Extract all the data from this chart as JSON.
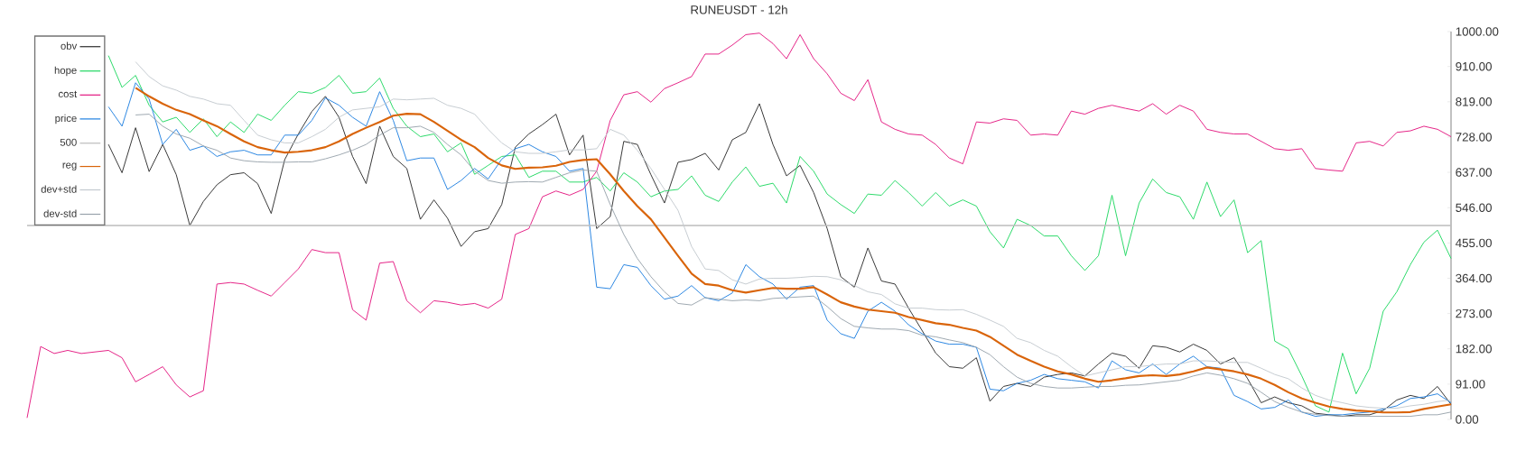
{
  "chart_data": {
    "type": "line",
    "title": "RUNEUSDT - 12h",
    "categories": [
      null,
      null,
      null,
      null,
      null,
      null,
      null,
      null,
      null,
      null,
      null,
      null,
      null,
      null,
      null,
      null,
      null,
      null,
      null,
      null,
      null,
      null,
      null,
      null,
      null,
      null,
      null,
      null,
      null,
      null,
      null,
      null,
      null,
      null,
      null,
      null,
      null,
      null,
      null,
      null,
      null,
      null,
      null,
      null,
      null,
      null,
      null,
      null,
      null,
      null,
      null,
      null,
      null,
      null,
      null,
      null,
      null,
      null,
      null,
      null,
      null,
      null,
      null,
      null,
      null,
      null,
      null,
      null,
      null,
      null,
      null,
      null,
      null,
      null,
      null,
      null,
      null,
      null,
      null,
      null,
      null,
      null,
      null,
      null,
      null,
      null,
      null,
      null,
      null,
      null,
      null,
      null,
      null,
      null,
      null,
      null,
      null,
      null,
      null,
      null,
      null,
      null,
      null,
      null,
      null,
      null
    ],
    "ylim": [
      0,
      1000
    ],
    "yticks": [
      {
        "value": 0,
        "label": "0.00"
      },
      {
        "value": 91,
        "label": "91.00"
      },
      {
        "value": 182,
        "label": "182.00"
      },
      {
        "value": 273,
        "label": "273.00"
      },
      {
        "value": 364,
        "label": "364.00"
      },
      {
        "value": 455,
        "label": "455.00"
      },
      {
        "value": 546,
        "label": "546.00"
      },
      {
        "value": 637,
        "label": "637.00"
      },
      {
        "value": 728,
        "label": "728.00"
      },
      {
        "value": 819,
        "label": "819.00"
      },
      {
        "value": 910,
        "label": "910.00"
      },
      {
        "value": 1000,
        "label": "1000.00"
      }
    ],
    "legend": "top left",
    "series": [
      {
        "name": "obv",
        "color": "#2b2b2b",
        "values": [
          null,
          null,
          null,
          null,
          null,
          null,
          709,
          636,
          752,
          639,
          709,
          631,
          500,
          562,
          605,
          631,
          636,
          608,
          531,
          670,
          736,
          794,
          833,
          779,
          678,
          608,
          756,
          678,
          647,
          516,
          566,
          519,
          446,
          484,
          492,
          554,
          702,
          736,
          760,
          787,
          682,
          733,
          492,
          523,
          717,
          709,
          631,
          558,
          663,
          670,
          686,
          643,
          721,
          740,
          814,
          709,
          628,
          655,
          585,
          492,
          368,
          341,
          442,
          357,
          349,
          287,
          229,
          171,
          136,
          132,
          159,
          47,
          85,
          93,
          85,
          109,
          116,
          120,
          112,
          143,
          171,
          163,
          132,
          190,
          186,
          174,
          194,
          178,
          143,
          159,
          105,
          43,
          58,
          43,
          35,
          16,
          12,
          8,
          12,
          12,
          23,
          50,
          62,
          54,
          85,
          39
        ]
      },
      {
        "name": "hope",
        "color": "#1ed760",
        "values": [
          null,
          null,
          null,
          null,
          null,
          null,
          938,
          856,
          887,
          810,
          767,
          779,
          740,
          775,
          729,
          767,
          740,
          787,
          771,
          810,
          845,
          841,
          856,
          887,
          841,
          845,
          880,
          802,
          756,
          729,
          736,
          690,
          713,
          632,
          655,
          678,
          682,
          624,
          640,
          640,
          612,
          612,
          624,
          589,
          636,
          612,
          574,
          589,
          593,
          628,
          578,
          562,
          612,
          651,
          601,
          609,
          558,
          678,
          640,
          581,
          554,
          531,
          581,
          578,
          616,
          585,
          550,
          585,
          550,
          566,
          550,
          484,
          442,
          516,
          500,
          473,
          473,
          422,
          384,
          422,
          578,
          422,
          558,
          620,
          585,
          574,
          516,
          612,
          523,
          566,
          430,
          461,
          202,
          182,
          112,
          35,
          19,
          171,
          66,
          132,
          279,
          329,
          399,
          457,
          488,
          415
        ]
      },
      {
        "name": "cost",
        "color": "#e3167f",
        "values": [
          4,
          188,
          170,
          178,
          170,
          174,
          178,
          159,
          97,
          116,
          136,
          89,
          58,
          74,
          349,
          353,
          349,
          333,
          318,
          353,
          388,
          438,
          430,
          430,
          283,
          256,
          403,
          407,
          306,
          275,
          306,
          302,
          295,
          299,
          287,
          310,
          477,
          492,
          574,
          589,
          578,
          593,
          640,
          771,
          837,
          845,
          818,
          853,
          868,
          884,
          942,
          942,
          965,
          992,
          996,
          969,
          930,
          992,
          930,
          891,
          841,
          822,
          876,
          767,
          748,
          736,
          733,
          709,
          674,
          659,
          767,
          764,
          775,
          771,
          733,
          736,
          733,
          795,
          787,
          802,
          810,
          802,
          795,
          814,
          787,
          810,
          795,
          748,
          740,
          736,
          736,
          717,
          698,
          694,
          698,
          647,
          643,
          640,
          713,
          717,
          705,
          740,
          744,
          756,
          748,
          729
        ]
      },
      {
        "name": "price",
        "color": "#1e7fe0",
        "values": [
          null,
          null,
          null,
          null,
          null,
          null,
          806,
          756,
          868,
          826,
          709,
          748,
          694,
          705,
          678,
          690,
          694,
          682,
          682,
          733,
          733,
          771,
          829,
          810,
          779,
          756,
          845,
          771,
          667,
          674,
          674,
          593,
          616,
          647,
          620,
          671,
          698,
          709,
          690,
          678,
          640,
          647,
          341,
          337,
          399,
          392,
          345,
          310,
          318,
          345,
          314,
          306,
          326,
          399,
          368,
          349,
          310,
          341,
          345,
          256,
          221,
          209,
          279,
          302,
          279,
          244,
          221,
          202,
          194,
          194,
          186,
          78,
          74,
          93,
          101,
          116,
          105,
          101,
          97,
          81,
          151,
          128,
          120,
          143,
          116,
          143,
          163,
          136,
          132,
          62,
          46,
          27,
          31,
          50,
          19,
          8,
          12,
          12,
          16,
          19,
          27,
          35,
          54,
          58,
          66,
          43
        ]
      },
      {
        "name": "500",
        "color": "#bdbdbd",
        "values": [
          500,
          500,
          500,
          500,
          500,
          500,
          500,
          500,
          500,
          500,
          500,
          500,
          500,
          500,
          500,
          500,
          500,
          500,
          500,
          500,
          500,
          500,
          500,
          500,
          500,
          500,
          500,
          500,
          500,
          500,
          500,
          500,
          500,
          500,
          500,
          500,
          500,
          500,
          500,
          500,
          500,
          500,
          500,
          500,
          500,
          500,
          500,
          500,
          500,
          500,
          500,
          500,
          500,
          500,
          500,
          500,
          500,
          500,
          500,
          500,
          500,
          500,
          500,
          500,
          500,
          500,
          500,
          500,
          500,
          500,
          500,
          500,
          500,
          500,
          500,
          500,
          500,
          500,
          500,
          500,
          500,
          500,
          500,
          500,
          500,
          500,
          500,
          500,
          500,
          500,
          500,
          500,
          500,
          500,
          500,
          500,
          500,
          500,
          500,
          500,
          500,
          500,
          500,
          500,
          500,
          500
        ]
      },
      {
        "name": "reg",
        "color": "#d9640a",
        "values": [
          null,
          null,
          null,
          null,
          null,
          null,
          null,
          null,
          855,
          833,
          814,
          798,
          787,
          771,
          756,
          736,
          717,
          702,
          694,
          688,
          690,
          694,
          702,
          717,
          736,
          752,
          767,
          783,
          788,
          787,
          767,
          744,
          721,
          702,
          674,
          655,
          646,
          649,
          650,
          654,
          664,
          669,
          671,
          632,
          589,
          550,
          516,
          469,
          422,
          376,
          349,
          345,
          333,
          327,
          333,
          339,
          337,
          337,
          341,
          322,
          302,
          291,
          283,
          279,
          275,
          264,
          256,
          248,
          244,
          236,
          229,
          213,
          190,
          167,
          151,
          136,
          124,
          116,
          105,
          97,
          101,
          106,
          112,
          114,
          112,
          116,
          124,
          134,
          129,
          124,
          116,
          105,
          89,
          70,
          54,
          43,
          33,
          27,
          23,
          21,
          18,
          18,
          19,
          27,
          33,
          39
        ]
      },
      {
        "name": "dev+std",
        "color": "#c3c9cf",
        "values": [
          null,
          null,
          null,
          null,
          null,
          null,
          null,
          null,
          922,
          884,
          860,
          849,
          833,
          826,
          814,
          810,
          771,
          733,
          721,
          713,
          713,
          729,
          748,
          779,
          798,
          802,
          806,
          826,
          824,
          826,
          828,
          810,
          802,
          787,
          748,
          713,
          690,
          686,
          686,
          690,
          695,
          695,
          698,
          748,
          733,
          694,
          647,
          593,
          539,
          446,
          388,
          384,
          360,
          349,
          362,
          364,
          364,
          366,
          369,
          368,
          360,
          345,
          329,
          322,
          298,
          287,
          287,
          283,
          282,
          283,
          271,
          256,
          240,
          209,
          198,
          178,
          163,
          136,
          112,
          120,
          128,
          136,
          136,
          140,
          143,
          143,
          151,
          151,
          149,
          147,
          147,
          132,
          116,
          105,
          81,
          62,
          50,
          43,
          35,
          31,
          29,
          29,
          35,
          39,
          46,
          50
        ]
      },
      {
        "name": "dev-std",
        "color": "#98a2ab",
        "values": [
          null,
          null,
          null,
          null,
          null,
          null,
          null,
          null,
          785,
          787,
          756,
          736,
          725,
          705,
          694,
          674,
          667,
          664,
          663,
          663,
          664,
          664,
          672,
          682,
          694,
          709,
          733,
          752,
          752,
          756,
          740,
          709,
          682,
          640,
          616,
          609,
          612,
          613,
          612,
          624,
          636,
          643,
          640,
          554,
          477,
          415,
          368,
          329,
          299,
          295,
          314,
          310,
          306,
          308,
          306,
          312,
          314,
          316,
          318,
          291,
          260,
          240,
          236,
          233,
          233,
          229,
          217,
          213,
          205,
          198,
          186,
          167,
          136,
          109,
          93,
          85,
          81,
          81,
          83,
          85,
          85,
          88,
          89,
          93,
          97,
          101,
          112,
          120,
          114,
          105,
          93,
          70,
          46,
          31,
          19,
          13,
          10,
          8,
          8,
          8,
          8,
          8,
          8,
          12,
          12,
          19
        ]
      }
    ]
  }
}
